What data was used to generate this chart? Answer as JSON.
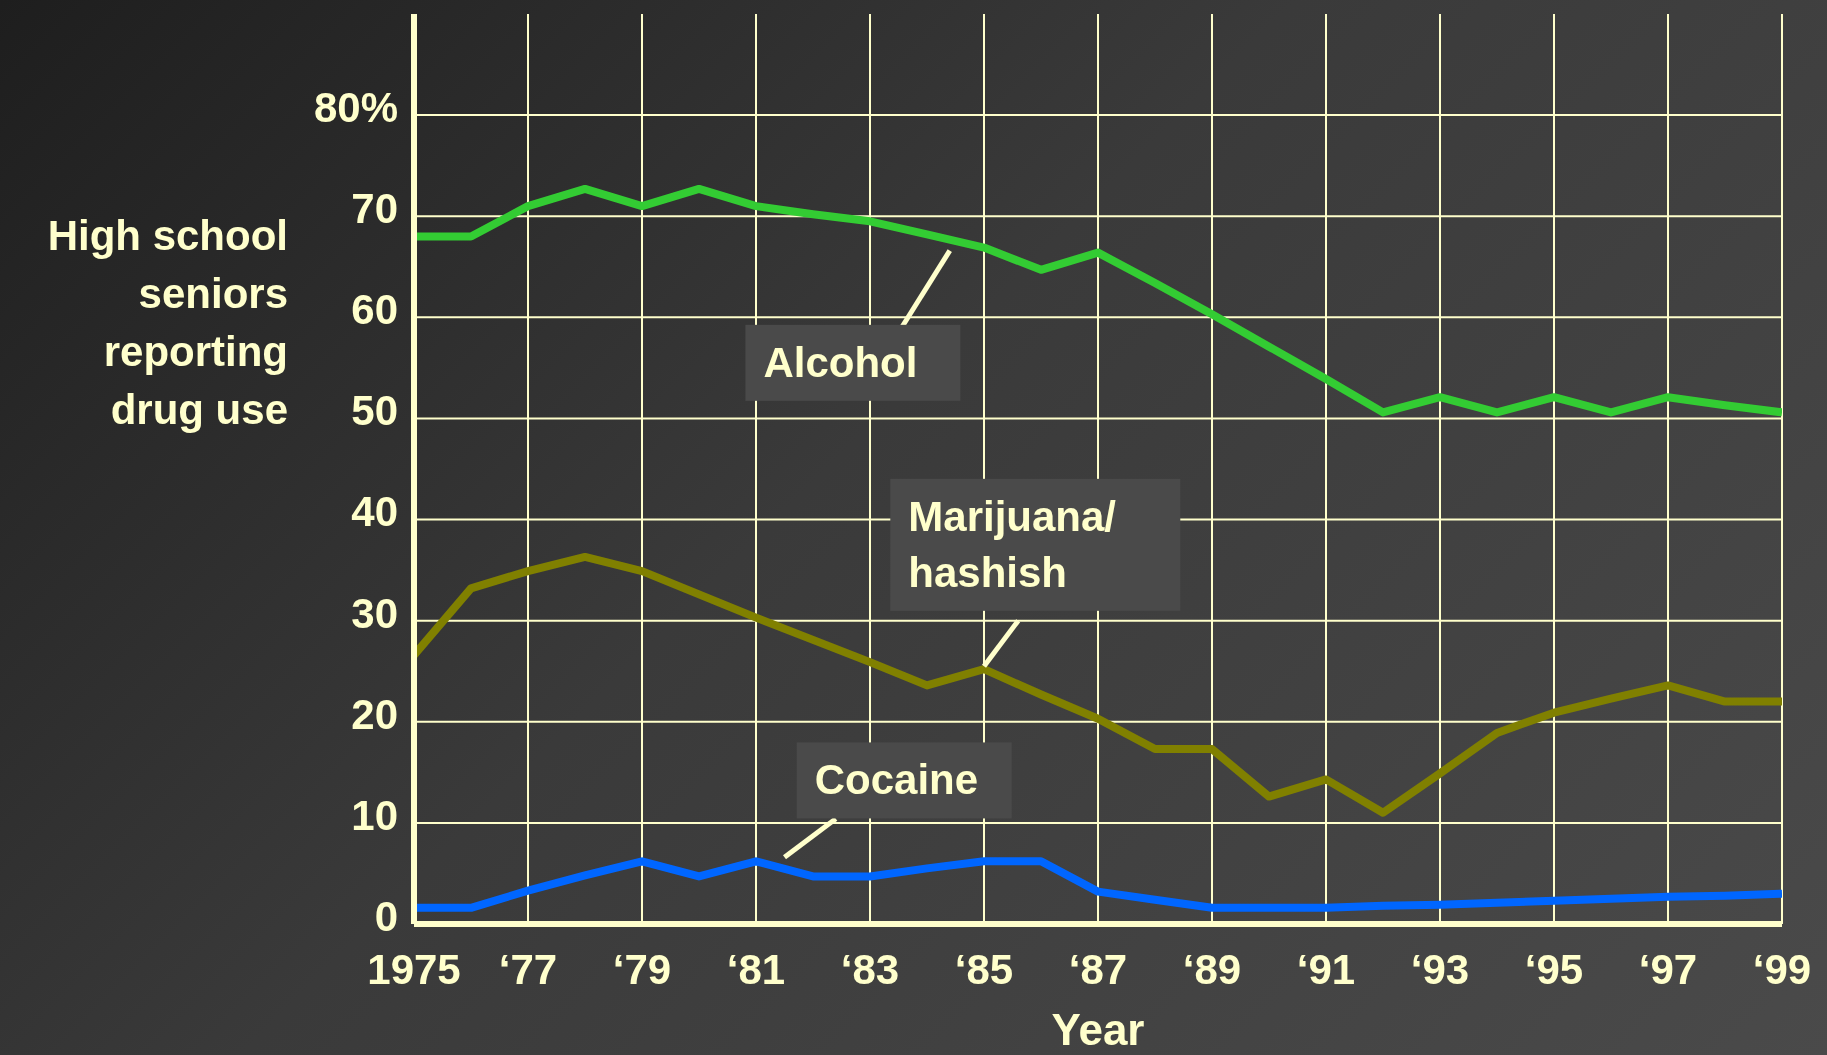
{
  "chart_data": {
    "type": "line",
    "xlabel": "Year",
    "ylabel": "High school seniors reporting drug use",
    "categories": [
      "1975",
      null,
      "‘77",
      null,
      "‘79",
      null,
      "‘81",
      null,
      "‘83",
      null,
      "‘85",
      null,
      "‘87",
      null,
      "‘89",
      null,
      "‘91",
      null,
      "‘93",
      null,
      "‘95",
      null,
      "‘97",
      null,
      "‘99"
    ],
    "series": [
      {
        "name": "Alcohol",
        "color": "#33cc33",
        "values": [
          68,
          68,
          71,
          72.7,
          71,
          72.7,
          71,
          70.2,
          69.5,
          68.2,
          66.9,
          64.7,
          66.4,
          63.4,
          60.3,
          57.1,
          53.9,
          50.6,
          52.1,
          50.6,
          52.1,
          50.6,
          52.1,
          51.3,
          50.6
        ]
      },
      {
        "name": "Marijuana/ hashish",
        "color": "#808000",
        "values": [
          26.6,
          33.2,
          34.9,
          36.3,
          34.9,
          32.6,
          30.3,
          28.1,
          25.9,
          23.6,
          25.2,
          22.7,
          20.3,
          17.3,
          17.3,
          12.6,
          14.3,
          11.0,
          14.9,
          18.9,
          20.9,
          22.3,
          23.6,
          22.0,
          22.0
        ]
      },
      {
        "name": "Cocaine",
        "color": "#0066ff",
        "values": [
          1.6,
          1.6,
          3.3,
          4.8,
          6.2,
          4.7,
          6.2,
          4.7,
          4.7,
          5.5,
          6.2,
          6.2,
          3.2,
          2.4,
          1.6,
          1.6,
          1.6,
          1.8,
          1.9,
          2.1,
          2.3,
          2.5,
          2.7,
          2.8,
          3.0
        ]
      }
    ],
    "ylim": [
      0,
      90
    ],
    "yticks": [
      0,
      10,
      20,
      30,
      40,
      50,
      60,
      70,
      {
        "value": 80,
        "label": "80%"
      }
    ],
    "grid": true,
    "marker": "none",
    "line_style": "solid"
  }
}
